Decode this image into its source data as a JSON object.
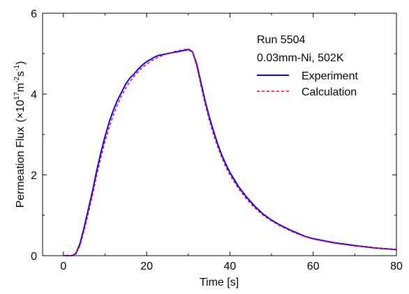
{
  "chart_data": {
    "type": "line",
    "xlabel": "Time  [s]",
    "ylabel": "Permeation  Flux",
    "ylabel_unit_prefix": "(×10",
    "ylabel_unit_exp": "17",
    "ylabel_unit_mid": "m",
    "ylabel_unit_exp2": "-2",
    "ylabel_unit_s": "s",
    "ylabel_unit_exp3": "-1",
    "ylabel_unit_suffix": ")",
    "xlim": [
      -5,
      80
    ],
    "ylim": [
      0,
      6
    ],
    "x_ticks": [
      "0",
      "20",
      "40",
      "60",
      "80"
    ],
    "y_ticks": [
      "0",
      "2",
      "4",
      "6"
    ],
    "grid": false,
    "legend_position": "top-right",
    "annotations": [
      "Run  5504",
      "0.03mm-Ni,  502K"
    ],
    "colors": {
      "experiment": "#0000ff",
      "calculation": "#ff0000"
    },
    "series": [
      {
        "name": "Experiment",
        "style": "solid",
        "x": [
          0,
          2,
          3,
          4,
          5,
          6,
          7,
          8,
          9,
          10,
          11,
          12,
          13,
          14,
          15,
          16,
          17,
          18,
          19,
          20,
          21,
          22,
          23,
          24,
          25,
          26,
          27,
          28,
          29,
          30,
          31,
          32,
          33,
          34,
          35,
          36,
          37,
          38,
          39,
          40,
          42,
          44,
          46,
          48,
          50,
          52,
          55,
          58,
          60,
          65,
          70,
          75,
          80
        ],
        "y": [
          0,
          0,
          0.05,
          0.3,
          0.7,
          1.15,
          1.6,
          2.1,
          2.55,
          2.95,
          3.3,
          3.6,
          3.85,
          4.05,
          4.25,
          4.4,
          4.5,
          4.62,
          4.72,
          4.8,
          4.86,
          4.92,
          4.96,
          4.98,
          5.0,
          5.02,
          5.04,
          5.06,
          5.08,
          5.1,
          5.05,
          4.75,
          4.3,
          3.85,
          3.45,
          3.1,
          2.78,
          2.5,
          2.27,
          2.06,
          1.72,
          1.45,
          1.22,
          1.03,
          0.88,
          0.76,
          0.61,
          0.48,
          0.42,
          0.32,
          0.25,
          0.19,
          0.15
        ]
      },
      {
        "name": "Calculation",
        "style": "dashed",
        "x": [
          0,
          2,
          3,
          4,
          5,
          6,
          7,
          8,
          9,
          10,
          11,
          12,
          13,
          14,
          15,
          16,
          17,
          18,
          19,
          20,
          21,
          22,
          23,
          24,
          25,
          26,
          27,
          28,
          29,
          30,
          31,
          32,
          33,
          34,
          35,
          36,
          37,
          38,
          39,
          40,
          42,
          44,
          46,
          48,
          50,
          52,
          55,
          58,
          60,
          65,
          70,
          75,
          80
        ],
        "y": [
          0,
          0,
          0.04,
          0.25,
          0.62,
          1.05,
          1.5,
          1.98,
          2.42,
          2.82,
          3.17,
          3.48,
          3.74,
          3.96,
          4.15,
          4.31,
          4.44,
          4.56,
          4.66,
          4.74,
          4.81,
          4.87,
          4.92,
          4.96,
          5.0,
          5.03,
          5.06,
          5.08,
          5.1,
          5.12,
          5.05,
          4.7,
          4.22,
          3.77,
          3.37,
          3.02,
          2.71,
          2.44,
          2.2,
          2.0,
          1.67,
          1.4,
          1.18,
          1.0,
          0.86,
          0.74,
          0.59,
          0.47,
          0.41,
          0.31,
          0.24,
          0.19,
          0.15
        ]
      }
    ]
  }
}
